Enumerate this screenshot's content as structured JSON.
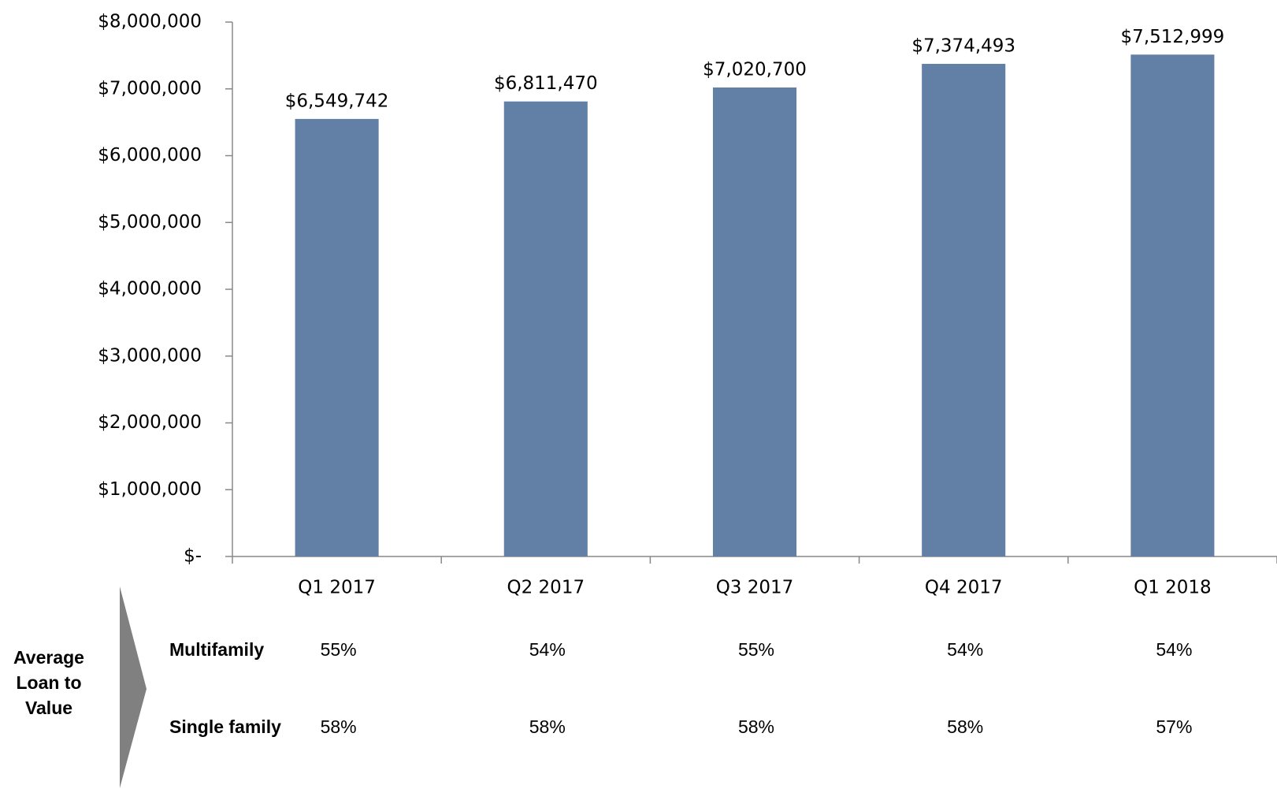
{
  "chart_data": {
    "type": "bar",
    "categories": [
      "Q1 2017",
      "Q2 2017",
      "Q3 2017",
      "Q4 2017",
      "Q1 2018"
    ],
    "values": [
      6549742,
      6811470,
      7020700,
      7374493,
      7512999
    ],
    "value_labels": [
      "$6,549,742",
      "$6,811,470",
      "$7,020,700",
      "$7,374,493",
      "$7,512,999"
    ],
    "color": "#6280a5",
    "ylim": [
      0,
      8000000
    ],
    "yticks": [
      {
        "value": 0,
        "label": "$-"
      },
      {
        "value": 1000000,
        "label": "$1,000,000"
      },
      {
        "value": 2000000,
        "label": "$2,000,000"
      },
      {
        "value": 3000000,
        "label": "$3,000,000"
      },
      {
        "value": 4000000,
        "label": "$4,000,000"
      },
      {
        "value": 5000000,
        "label": "$5,000,000"
      },
      {
        "value": 6000000,
        "label": "$6,000,000"
      },
      {
        "value": 7000000,
        "label": "$7,000,000"
      },
      {
        "value": 8000000,
        "label": "$8,000,000"
      }
    ],
    "grid": false
  },
  "ltv_table": {
    "title_lines": [
      "Average",
      "Loan to",
      "Value"
    ],
    "rows": [
      {
        "name": "Multifamily",
        "cells": [
          "55%",
          "54%",
          "55%",
          "54%",
          "54%"
        ]
      },
      {
        "name": "Single family",
        "cells": [
          "58%",
          "58%",
          "58%",
          "58%",
          "57%"
        ]
      }
    ]
  }
}
